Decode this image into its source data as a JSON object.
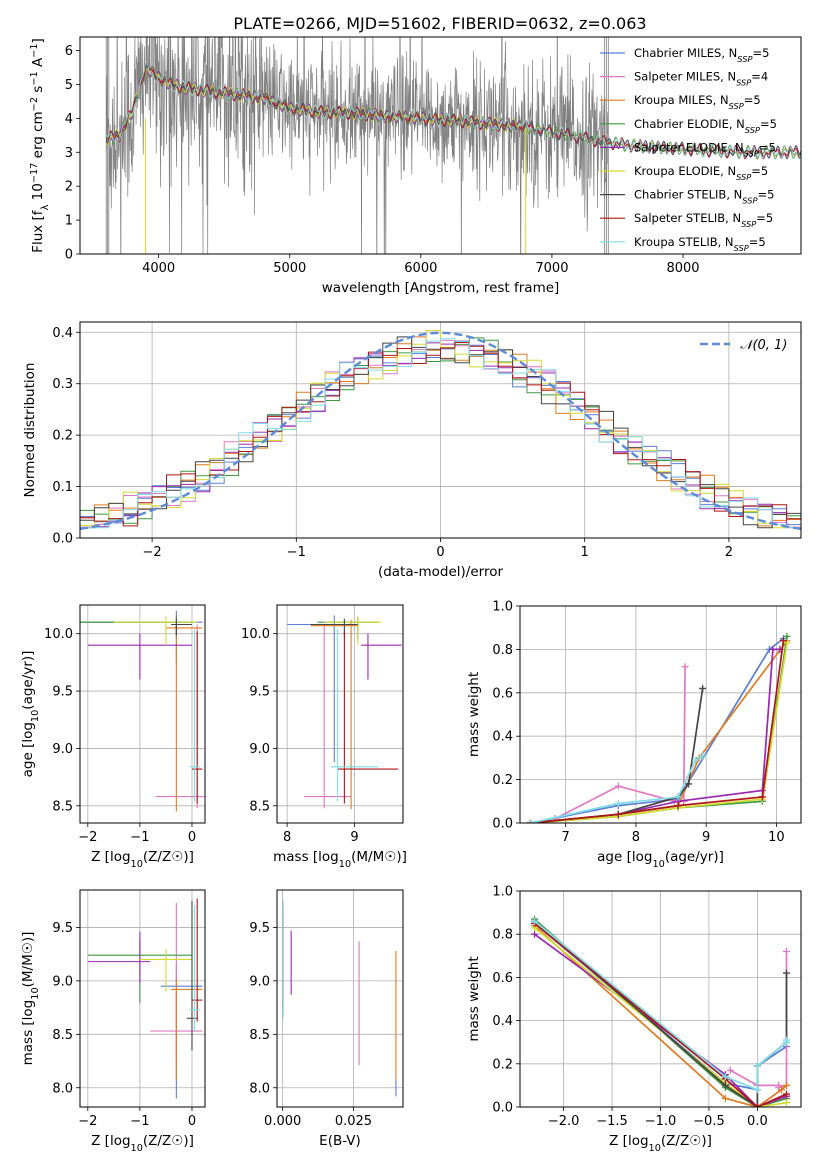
{
  "figure_title": "PLATE=0266, MJD=51602, FIBERID=0632, z=0.063",
  "colors": {
    "grid": "#b0b0b0",
    "data": "#808080",
    "normal": "#5b8bd9"
  },
  "models": [
    {
      "name": "Chabrier MILES",
      "nssp": "5",
      "color": "#5b7fd6"
    },
    {
      "name": "Salpeter MILES",
      "nssp": "4",
      "color": "#e377c2"
    },
    {
      "name": "Kroupa MILES",
      "nssp": "5",
      "color": "#e07b1f"
    },
    {
      "name": "Chabrier ELODIE",
      "nssp": "5",
      "color": "#3d9a3d"
    },
    {
      "name": "Salpeter ELODIE",
      "nssp": "5",
      "color": "#9b27b0"
    },
    {
      "name": "Kroupa ELODIE",
      "nssp": "5",
      "color": "#d4dc2e"
    },
    {
      "name": "Chabrier STELIB",
      "nssp": "5",
      "color": "#444444"
    },
    {
      "name": "Salpeter STELIB",
      "nssp": "5",
      "color": "#b01515"
    },
    {
      "name": "Kroupa STELIB",
      "nssp": "5",
      "color": "#7fdde8"
    }
  ],
  "chart_data": [
    {
      "id": "spectrum",
      "type": "line",
      "xlabel": "wavelength [Angstrom, rest frame]",
      "ylabel": "Flux [f_λ 10^-17 erg cm^-2 s^-1 A^-1]",
      "xlim": [
        3400,
        8900
      ],
      "ylim": [
        0,
        6.4
      ],
      "xticks": [
        4000,
        5000,
        6000,
        7000,
        8000
      ],
      "yticks": [
        0,
        1,
        2,
        3,
        4,
        5,
        6
      ],
      "legend": "right",
      "continuum": {
        "x": [
          3600,
          3700,
          3800,
          3900,
          4000,
          4100,
          4200,
          4400,
          4600,
          4800,
          5000,
          5200,
          5500,
          5800,
          6000,
          6200,
          6500,
          6800,
          7000,
          7200,
          7400,
          7600,
          7800,
          8000,
          8200,
          8500,
          8700,
          8900
        ],
        "y": [
          3.4,
          3.5,
          4.2,
          5.5,
          5.2,
          5.0,
          4.9,
          4.8,
          4.7,
          4.6,
          4.3,
          4.2,
          4.15,
          4.05,
          4.0,
          3.95,
          3.85,
          3.75,
          3.6,
          3.45,
          3.3,
          3.2,
          3.15,
          3.1,
          3.05,
          3.0,
          3.0,
          3.0
        ]
      },
      "data_range": [
        3600,
        7430
      ]
    },
    {
      "id": "residual-histogram",
      "type": "line",
      "xlabel": "(data-model)/error",
      "ylabel": "Normed distribution",
      "xlim": [
        -2.5,
        2.5
      ],
      "ylim": [
        0,
        0.42
      ],
      "xticks": [
        -2,
        -1,
        0,
        1,
        2
      ],
      "yticks": [
        0.0,
        0.1,
        0.2,
        0.3,
        0.4
      ],
      "series_name": "𝒩(0, 1)",
      "legend": "top-right",
      "bin_width": 0.1
    },
    {
      "id": "age-vs-Z",
      "type": "scatter",
      "xlabel": "Z [log10(Z/Z☉)]",
      "ylabel": "age [log10(age/yr)]",
      "xlim": [
        -2.15,
        0.25
      ],
      "ylim": [
        8.35,
        10.25
      ],
      "xticks": [
        -2,
        -1,
        0
      ],
      "yticks": [
        8.5,
        9.0,
        9.5,
        10.0
      ],
      "points": [
        {
          "m": 0,
          "x": -0.3,
          "xl": 2.0,
          "xh": 0.5,
          "y": 10.1,
          "yl": 0.35,
          "yh": 0.1
        },
        {
          "m": 1,
          "x": 0.1,
          "xl": 0.8,
          "xh": 0.2,
          "y": 8.58,
          "yl": 0.1,
          "yh": 1.5
        },
        {
          "m": 2,
          "x": -0.3,
          "xl": 0.2,
          "xh": 0.5,
          "y": 10.05,
          "yl": 1.6,
          "yh": 0.05
        },
        {
          "m": 3,
          "x": -0.3,
          "xl": 2.0,
          "xh": 0.3,
          "y": 10.1,
          "yl": 0.1,
          "yh": 0.05
        },
        {
          "m": 4,
          "x": -1.0,
          "xl": 1.0,
          "xh": 1.0,
          "y": 9.9,
          "yl": 0.3,
          "yh": 0.1
        },
        {
          "m": 5,
          "x": -0.5,
          "xl": 1.0,
          "xh": 0.6,
          "y": 10.1,
          "yl": 0.2,
          "yh": 0.05
        },
        {
          "m": 6,
          "x": -0.3,
          "xl": 0.1,
          "xh": 0.3,
          "y": 10.08,
          "yl": 0.1,
          "yh": 0.05
        },
        {
          "m": 7,
          "x": 0.1,
          "xl": 0.1,
          "xh": 0.1,
          "y": 8.82,
          "yl": 0.3,
          "yh": 1.2
        },
        {
          "m": 8,
          "x": 0.05,
          "xl": 0.1,
          "xh": 0.1,
          "y": 8.84,
          "yl": 0.3,
          "yh": 1.2
        }
      ]
    },
    {
      "id": "age-vs-mass",
      "type": "scatter",
      "xlabel": "mass [log10(M/M☉)]",
      "ylabel": "",
      "xlim": [
        7.85,
        9.72
      ],
      "ylim": [
        8.35,
        10.25
      ],
      "xticks": [
        8,
        9
      ],
      "yticks": [
        8.5,
        9.0,
        9.5,
        10.0
      ],
      "points": [
        {
          "m": 0,
          "x": 8.7,
          "xl": 0.7,
          "xh": 0.3,
          "y": 10.08,
          "yl": 1.2,
          "yh": 0.08
        },
        {
          "m": 1,
          "x": 8.55,
          "xl": 0.3,
          "xh": 0.4,
          "y": 8.58,
          "yl": 0.1,
          "yh": 1.5
        },
        {
          "m": 2,
          "x": 8.95,
          "xl": 0.6,
          "xh": 0.1,
          "y": 10.07,
          "yl": 1.6,
          "yh": 0.05
        },
        {
          "m": 3,
          "x": 9.05,
          "xl": 0.6,
          "xh": 0.3,
          "y": 10.1,
          "yl": 0.15,
          "yh": 0.05
        },
        {
          "m": 4,
          "x": 9.2,
          "xl": 0.1,
          "xh": 0.5,
          "y": 9.9,
          "yl": 0.3,
          "yh": 0.1
        },
        {
          "m": 5,
          "x": 9.05,
          "xl": 0.5,
          "xh": 0.35,
          "y": 10.1,
          "yl": 0.2,
          "yh": 0.05
        },
        {
          "m": 6,
          "x": 8.85,
          "xl": 0.5,
          "xh": 0.2,
          "y": 10.08,
          "yl": 0.1,
          "yh": 0.05
        },
        {
          "m": 7,
          "x": 8.85,
          "xl": 0.1,
          "xh": 0.8,
          "y": 8.82,
          "yl": 0.3,
          "yh": 1.2
        },
        {
          "m": 8,
          "x": 8.75,
          "xl": 0.1,
          "xh": 0.6,
          "y": 8.84,
          "yl": 0.3,
          "yh": 1.2
        }
      ]
    },
    {
      "id": "massweight-vs-age",
      "type": "line",
      "xlabel": "age [log10(age/yr)]",
      "ylabel": "mass weight",
      "xlim": [
        6.35,
        10.35
      ],
      "ylim": [
        0,
        1.0
      ],
      "xticks": [
        7,
        8,
        9,
        10
      ],
      "yticks": [
        0.0,
        0.2,
        0.4,
        0.6,
        0.8,
        1.0
      ],
      "series": [
        {
          "m": 0,
          "x": [
            6.5,
            7.75,
            8.6,
            9.9,
            10.1
          ],
          "y": [
            0.0,
            0.08,
            0.11,
            0.8,
            0.85
          ]
        },
        {
          "m": 1,
          "x": [
            6.85,
            7.75,
            8.55,
            8.68,
            8.7
          ],
          "y": [
            0.02,
            0.17,
            0.1,
            0.1,
            0.72
          ]
        },
        {
          "m": 2,
          "x": [
            6.5,
            7.75,
            8.6,
            8.9,
            10.15
          ],
          "y": [
            0.0,
            0.04,
            0.08,
            0.3,
            0.84
          ]
        },
        {
          "m": 3,
          "x": [
            6.5,
            7.75,
            8.6,
            9.8,
            10.15
          ],
          "y": [
            0.0,
            0.03,
            0.07,
            0.1,
            0.86
          ]
        },
        {
          "m": 4,
          "x": [
            6.5,
            7.75,
            8.6,
            9.8,
            9.95,
            10.05
          ],
          "y": [
            0.0,
            0.04,
            0.1,
            0.15,
            0.8,
            0.8
          ]
        },
        {
          "m": 5,
          "x": [
            6.5,
            7.75,
            8.6,
            9.8,
            10.15
          ],
          "y": [
            0.0,
            0.03,
            0.07,
            0.11,
            0.83
          ]
        },
        {
          "m": 6,
          "x": [
            6.5,
            7.75,
            8.6,
            8.75,
            8.95
          ],
          "y": [
            0.0,
            0.04,
            0.12,
            0.18,
            0.62
          ]
        },
        {
          "m": 7,
          "x": [
            6.5,
            7.75,
            8.6,
            9.8,
            10.1
          ],
          "y": [
            0.0,
            0.04,
            0.08,
            0.12,
            0.84
          ]
        },
        {
          "m": 8,
          "x": [
            6.5,
            7.75,
            8.6,
            8.85,
            8.95
          ],
          "y": [
            0.0,
            0.09,
            0.12,
            0.29,
            0.31
          ]
        }
      ]
    },
    {
      "id": "mass-vs-Z",
      "type": "scatter",
      "xlabel": "Z [log10(Z/Z☉)]",
      "ylabel": "mass [log10(M/M☉)]",
      "xlim": [
        -2.15,
        0.25
      ],
      "ylim": [
        7.82,
        9.85
      ],
      "xticks": [
        -2,
        -1,
        0
      ],
      "yticks": [
        8.0,
        8.5,
        9.0,
        9.5
      ],
      "points": [
        {
          "m": 0,
          "x": -0.3,
          "xl": 0.3,
          "xh": 0.5,
          "y": 8.95,
          "yl": 1.05,
          "yh": 0.2
        },
        {
          "m": 1,
          "x": -0.3,
          "xl": 0.5,
          "xh": 0.5,
          "y": 8.53,
          "yl": 0.3,
          "yh": 1.2
        },
        {
          "m": 2,
          "x": -0.3,
          "xl": 0.1,
          "xh": 0.5,
          "y": 8.92,
          "yl": 0.85,
          "yh": 0.1
        },
        {
          "m": 3,
          "x": -1.0,
          "xl": 1.0,
          "xh": 1.0,
          "y": 9.24,
          "yl": 0.45,
          "yh": 0.15
        },
        {
          "m": 4,
          "x": -1.0,
          "xl": 1.0,
          "xh": 0.2,
          "y": 9.18,
          "yl": 0.2,
          "yh": 0.28
        },
        {
          "m": 5,
          "x": -0.5,
          "xl": 0.5,
          "xh": 0.5,
          "y": 9.2,
          "yl": 0.3,
          "yh": 0.1
        },
        {
          "m": 6,
          "x": 0.0,
          "xl": 0.1,
          "xh": 0.1,
          "y": 8.65,
          "yl": 0.3,
          "yh": 1.1
        },
        {
          "m": 7,
          "x": 0.1,
          "xl": 0.1,
          "xh": 0.1,
          "y": 8.82,
          "yl": 0.2,
          "yh": 0.95
        },
        {
          "m": 8,
          "x": 0.05,
          "xl": 0.1,
          "xh": 0.1,
          "y": 8.73,
          "yl": 0.2,
          "yh": 0.98
        }
      ]
    },
    {
      "id": "mass-vs-ebv",
      "type": "scatter",
      "xlabel": "E(B-V)",
      "ylabel": "",
      "xlim": [
        -0.002,
        0.0425
      ],
      "ylim": [
        7.82,
        9.85
      ],
      "xticks": [
        0.0,
        0.025
      ],
      "xtick_labels": [
        "0.000",
        "0.025"
      ],
      "yticks": [
        8.0,
        8.5,
        9.0,
        9.5
      ],
      "points": [
        {
          "m": 0,
          "x": 0.04,
          "y": 8.0,
          "yl": 0.08,
          "yh": 0.08
        },
        {
          "m": 1,
          "x": 0.027,
          "y": 8.79,
          "yl": 0.58,
          "yh": 0.58
        },
        {
          "m": 2,
          "x": 0.04,
          "y": 8.68,
          "yl": 0.6,
          "yh": 0.6
        },
        {
          "m": 3,
          "x": 0.0,
          "y": 9.25,
          "yl": 0.55,
          "yh": 0.5
        },
        {
          "m": 4,
          "x": 0.003,
          "y": 9.17,
          "yl": 0.3,
          "yh": 0.3
        },
        {
          "m": 5,
          "x": 0.0,
          "y": 9.2,
          "yl": 0.4,
          "yh": 0.4
        },
        {
          "m": 6,
          "x": 0.0,
          "y": 9.15,
          "yl": 0.5,
          "yh": 0.5
        },
        {
          "m": 7,
          "x": 0.0,
          "y": 9.3,
          "yl": 0.5,
          "yh": 0.45
        },
        {
          "m": 8,
          "x": 0.0,
          "y": 9.2,
          "yl": 0.55,
          "yh": 0.55
        }
      ]
    },
    {
      "id": "massweight-vs-Z",
      "type": "line",
      "xlabel": "Z [log10(Z/Z☉)]",
      "ylabel": "mass weight",
      "xlim": [
        -2.45,
        0.45
      ],
      "ylim": [
        0,
        1.0
      ],
      "xticks": [
        -2.0,
        -1.5,
        -1.0,
        -0.5,
        0.0
      ],
      "xtick_labels": [
        "−2.0",
        "−1.5",
        "−1.0",
        "−0.5",
        "0.0"
      ],
      "yticks": [
        0.0,
        0.2,
        0.4,
        0.6,
        0.8,
        1.0
      ],
      "series": [
        {
          "m": 0,
          "x": [
            -2.3,
            -0.33,
            0.0,
            0.0,
            0.3
          ],
          "y": [
            0.85,
            0.11,
            0.08,
            0.19,
            0.28
          ]
        },
        {
          "m": 1,
          "x": [
            -0.28,
            0.0,
            0.22,
            0.22,
            0.3,
            0.3
          ],
          "y": [
            0.17,
            0.1,
            0.1,
            0.09,
            0.1,
            0.72
          ]
        },
        {
          "m": 2,
          "x": [
            -2.3,
            -0.33,
            0.0,
            0.25,
            0.3
          ],
          "y": [
            0.84,
            0.04,
            0.0,
            0.08,
            0.1
          ]
        },
        {
          "m": 3,
          "x": [
            -2.3,
            -0.33,
            0.0,
            0.3
          ],
          "y": [
            0.87,
            0.09,
            0.0,
            0.04
          ]
        },
        {
          "m": 4,
          "x": [
            -2.3,
            -0.33,
            0.0,
            0.3
          ],
          "y": [
            0.8,
            0.15,
            0.0,
            0.05
          ]
        },
        {
          "m": 5,
          "x": [
            -2.3,
            -0.33,
            0.0,
            0.3
          ],
          "y": [
            0.83,
            0.11,
            0.0,
            0.02
          ]
        },
        {
          "m": 6,
          "x": [
            -2.3,
            -0.33,
            0.0,
            0.0,
            0.3,
            0.3
          ],
          "y": [
            0.86,
            0.1,
            0.0,
            0.19,
            0.3,
            0.62
          ]
        },
        {
          "m": 7,
          "x": [
            -2.3,
            -0.33,
            0.0,
            0.3
          ],
          "y": [
            0.85,
            0.13,
            0.0,
            0.06
          ]
        },
        {
          "m": 8,
          "x": [
            -2.3,
            -0.33,
            0.0,
            0.0,
            0.3,
            0.3
          ],
          "y": [
            0.86,
            0.14,
            0.08,
            0.19,
            0.3,
            0.31
          ]
        }
      ]
    }
  ]
}
